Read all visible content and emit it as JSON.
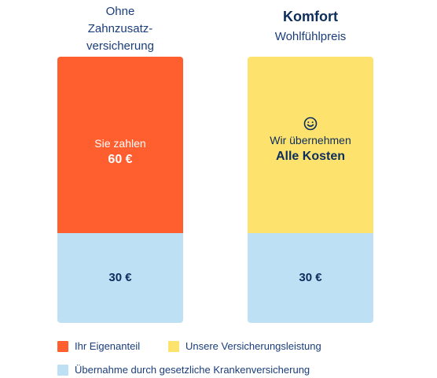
{
  "left_column": {
    "header_line1": "Ohne",
    "header_line2": "Zahnzusatz-",
    "header_line3": "versicherung",
    "top_segment": {
      "label": "Sie zahlen",
      "value": "60 €",
      "color": "#ff5f2f"
    },
    "bottom_segment": {
      "value": "30 €",
      "color": "#bee0f4"
    }
  },
  "right_column": {
    "title": "Komfort",
    "subtitle": "Wohlfühlpreis",
    "top_segment": {
      "icon": "smiley-icon",
      "label": "Wir übernehmen",
      "value": "Alle Kosten",
      "color": "#fde36d"
    },
    "bottom_segment": {
      "value": "30 €",
      "color": "#bee0f4"
    }
  },
  "legend": [
    {
      "label": "Ihr Eigenanteil",
      "color": "#ff5f2f"
    },
    {
      "label": "Unsere Versicherungsleistung",
      "color": "#fde36d"
    },
    {
      "label": "Übernahme durch gesetzliche Krankenversicherung",
      "color": "#bee0f4"
    }
  ]
}
